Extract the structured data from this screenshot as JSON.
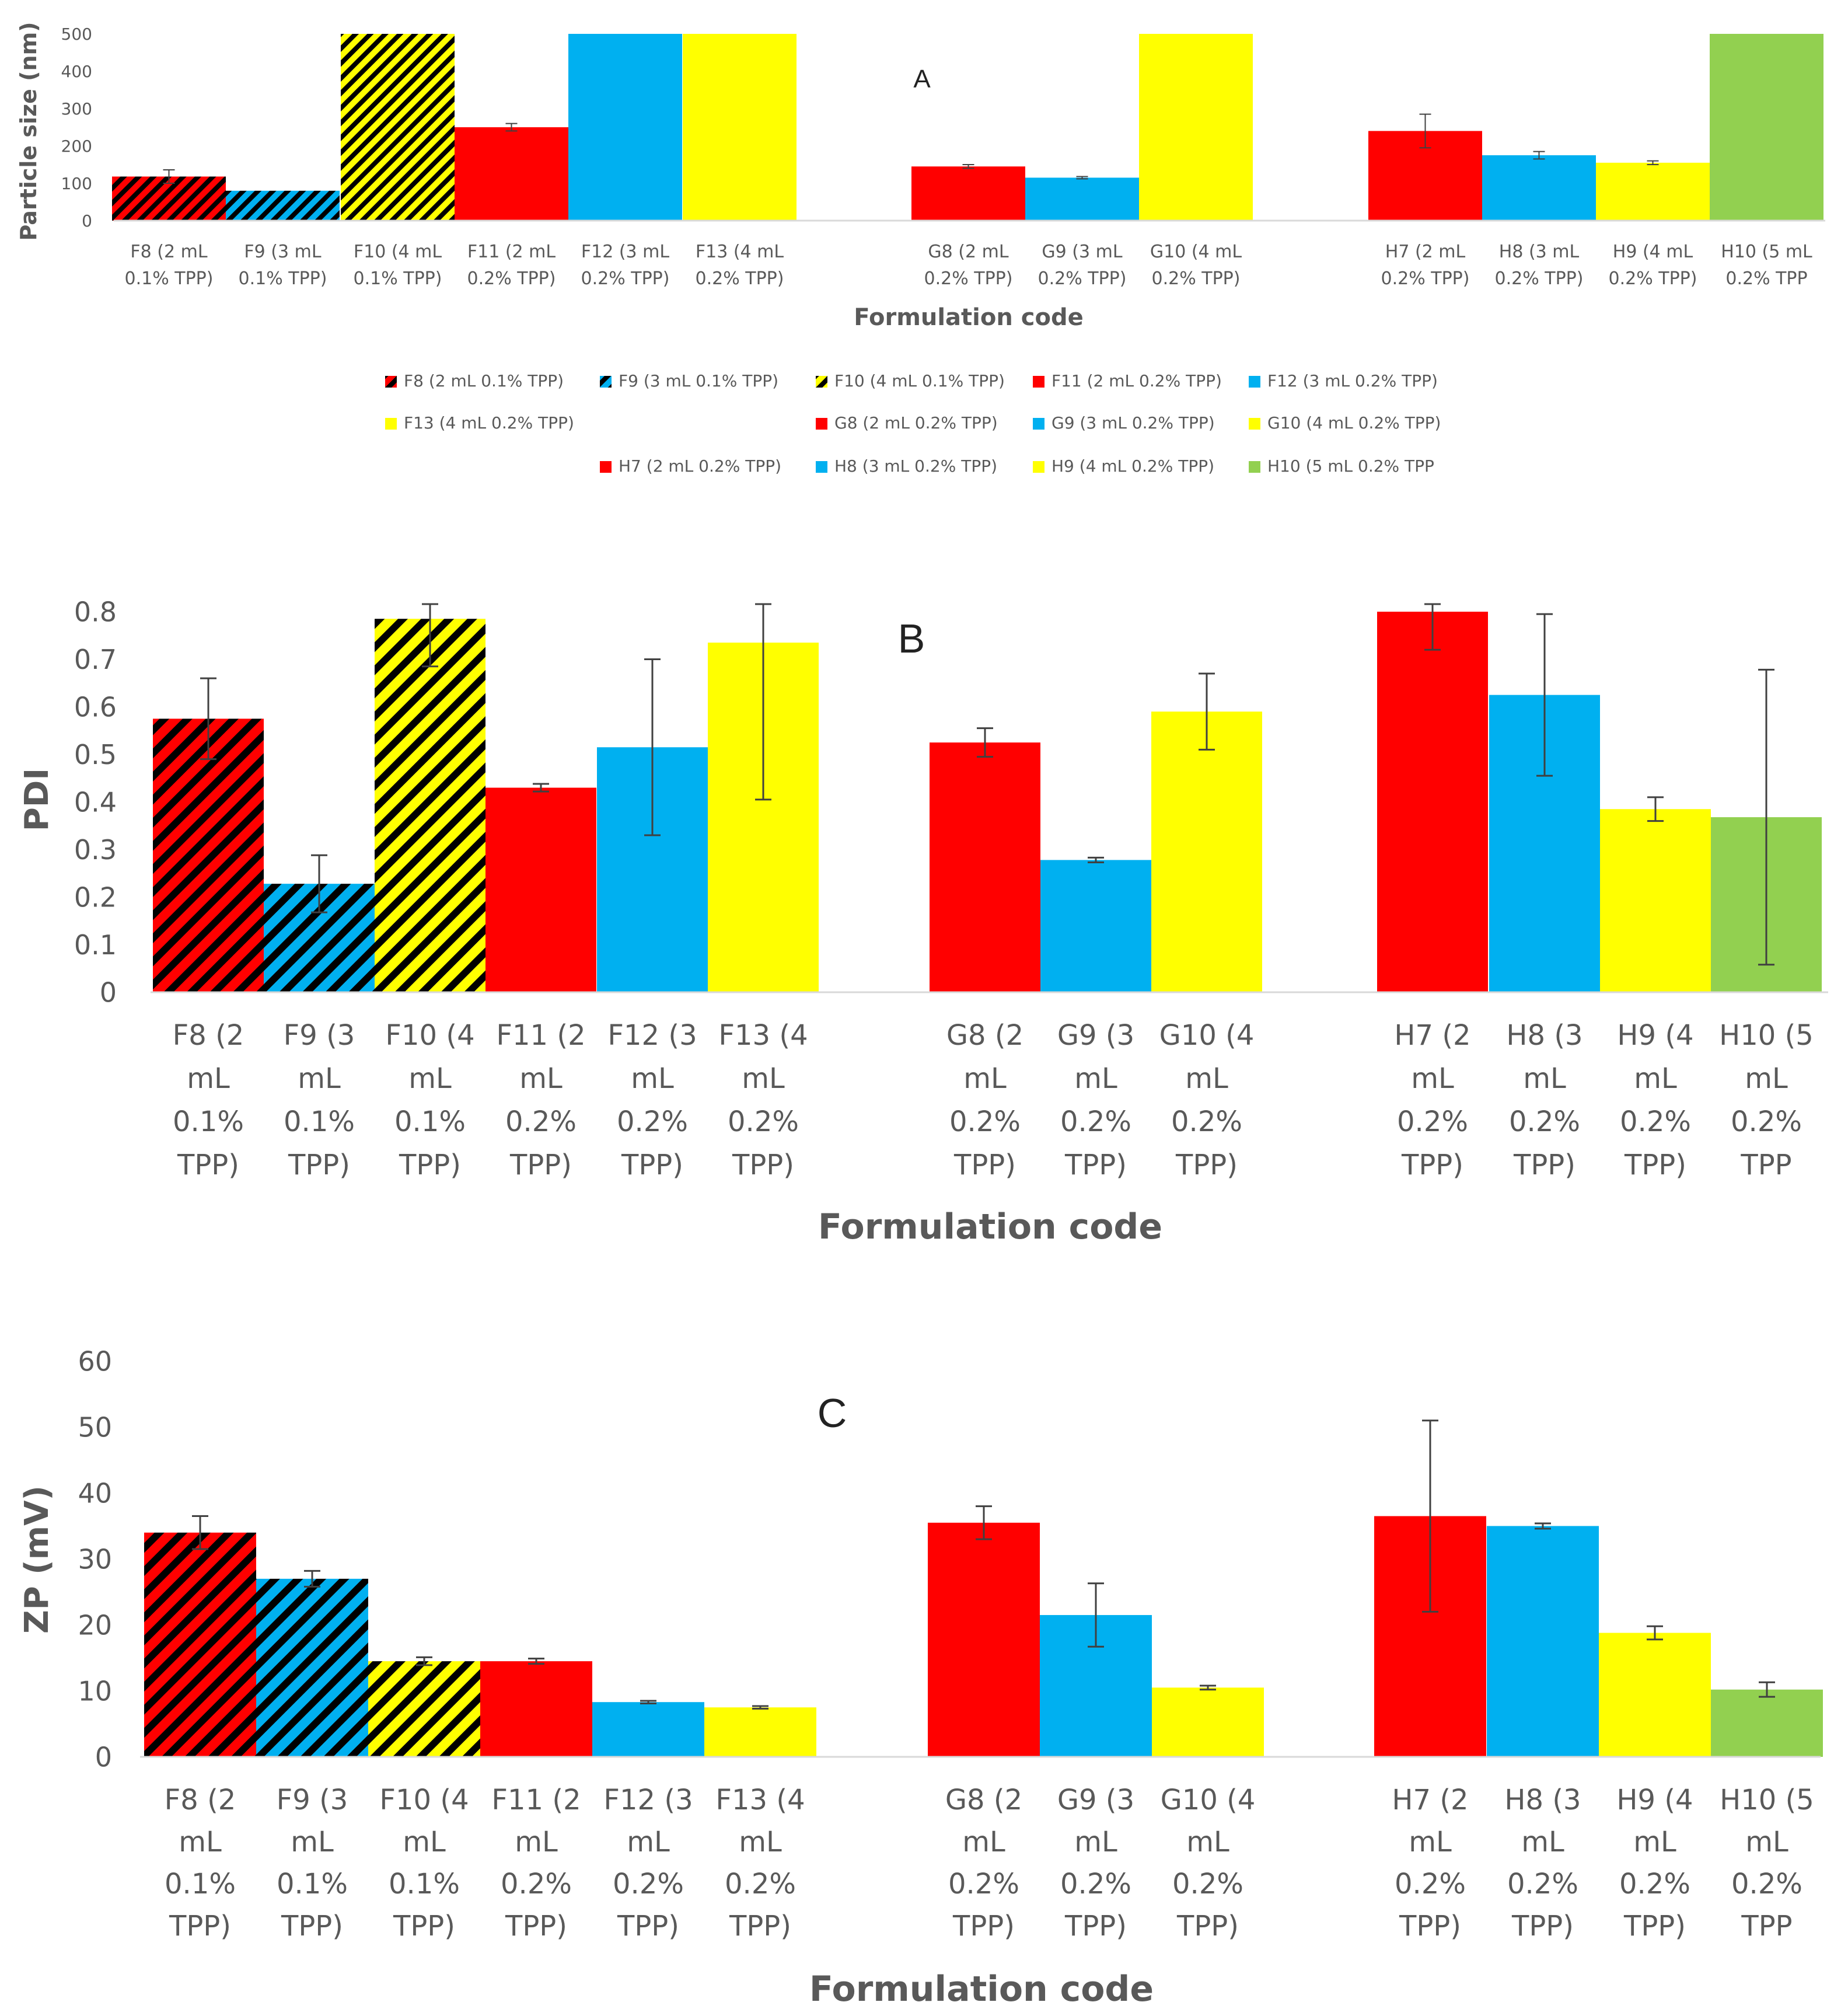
{
  "colors": {
    "red": "#ff0000",
    "blue": "#00b0f0",
    "yellow": "#ffff00",
    "green": "#92d050",
    "hatch": "#000000",
    "axis": "#d9d9d9",
    "error": "#404040"
  },
  "categories": [
    {
      "label": "F8 (2 mL 0.1% TPP)",
      "lines": [
        "F8 (2",
        "mL",
        "0.1%",
        "TPP)"
      ],
      "color": "red",
      "hatched": true
    },
    {
      "label": "F9 (3 mL 0.1% TPP)",
      "lines": [
        "F9 (3",
        "mL",
        "0.1%",
        "TPP)"
      ],
      "color": "blue",
      "hatched": true
    },
    {
      "label": "F10 (4 mL 0.1% TPP)",
      "lines": [
        "F10 (4",
        "mL",
        "0.1%",
        "TPP)"
      ],
      "color": "yellow",
      "hatched": true
    },
    {
      "label": "F11 (2 mL 0.2% TPP)",
      "lines": [
        "F11 (2",
        "mL",
        "0.2%",
        "TPP)"
      ],
      "color": "red",
      "hatched": false
    },
    {
      "label": "F12 (3 mL 0.2% TPP)",
      "lines": [
        "F12 (3",
        "mL",
        "0.2%",
        "TPP)"
      ],
      "color": "blue",
      "hatched": false
    },
    {
      "label": "F13 (4 mL 0.2% TPP)",
      "lines": [
        "F13 (4",
        "mL",
        "0.2%",
        "TPP)"
      ],
      "color": "yellow",
      "hatched": false
    },
    {
      "label": "G8 (2 mL 0.2% TPP)",
      "lines": [
        "G8 (2",
        "mL",
        "0.2%",
        "TPP)"
      ],
      "color": "red",
      "hatched": false
    },
    {
      "label": "G9 (3 mL 0.2% TPP)",
      "lines": [
        "G9 (3",
        "mL",
        "0.2%",
        "TPP)"
      ],
      "color": "blue",
      "hatched": false
    },
    {
      "label": "G10 (4 mL 0.2% TPP)",
      "lines": [
        "G10 (4",
        "mL",
        "0.2%",
        "TPP)"
      ],
      "color": "yellow",
      "hatched": false
    },
    {
      "label": "H7 (2 mL 0.2% TPP)",
      "lines": [
        "H7 (2",
        "mL",
        "0.2%",
        "TPP)"
      ],
      "color": "red",
      "hatched": false
    },
    {
      "label": "H8 (3 mL 0.2% TPP)",
      "lines": [
        "H8 (3",
        "mL",
        "0.2%",
        "TPP)"
      ],
      "color": "blue",
      "hatched": false
    },
    {
      "label": "H9 (4 mL 0.2% TPP)",
      "lines": [
        "H9 (4",
        "mL",
        "0.2%",
        "TPP)"
      ],
      "color": "yellow",
      "hatched": false
    },
    {
      "label": "H10 (5 mL 0.2% TPP",
      "lines": [
        "H10 (5",
        "mL",
        "0.2%",
        "TPP"
      ],
      "color": "green",
      "hatched": false
    }
  ],
  "legend_rows": [
    [
      0,
      1,
      2,
      3,
      4
    ],
    [
      5,
      6,
      7,
      8
    ],
    [
      9,
      10,
      11,
      12
    ]
  ],
  "chart_data": [
    {
      "panel": "A",
      "type": "bar",
      "xlabel": "Formulation code",
      "ylabel": "Particle size (nm)",
      "ylim": [
        0,
        500
      ],
      "yticks": [
        0,
        100,
        200,
        300,
        400,
        500
      ],
      "values": [
        118,
        80,
        500,
        250,
        500,
        500,
        145,
        115,
        500,
        240,
        175,
        155,
        500
      ],
      "errors": [
        18,
        0,
        0,
        10,
        0,
        0,
        5,
        3,
        0,
        45,
        10,
        5,
        0
      ]
    },
    {
      "panel": "B",
      "type": "bar",
      "xlabel": "Formulation code",
      "ylabel": "PDI",
      "ylim": [
        0,
        0.8
      ],
      "yticks": [
        0,
        0.1,
        0.2,
        0.3,
        0.4,
        0.5,
        0.6,
        0.7,
        0.8
      ],
      "values": [
        0.575,
        0.228,
        0.785,
        0.43,
        0.515,
        0.735,
        0.525,
        0.278,
        0.59,
        0.8,
        0.625,
        0.385,
        0.368
      ],
      "errors": [
        0.085,
        0.06,
        0.1,
        0.008,
        0.185,
        0.33,
        0.03,
        0.005,
        0.08,
        0.08,
        0.17,
        0.025,
        0.31
      ]
    },
    {
      "panel": "C",
      "type": "bar",
      "xlabel": "Formulation code",
      "ylabel": "ZP (mV)",
      "ylim": [
        0,
        60
      ],
      "yticks": [
        0,
        10,
        20,
        30,
        40,
        50,
        60
      ],
      "values": [
        34,
        27,
        14.5,
        14.5,
        8.3,
        7.5,
        35.5,
        21.5,
        10.5,
        36.5,
        35,
        18.8,
        10.2
      ],
      "errors": [
        2.5,
        1.2,
        0.6,
        0.4,
        0.2,
        0.2,
        2.5,
        4.8,
        0.3,
        14.5,
        0.4,
        1,
        1.1
      ]
    }
  ]
}
